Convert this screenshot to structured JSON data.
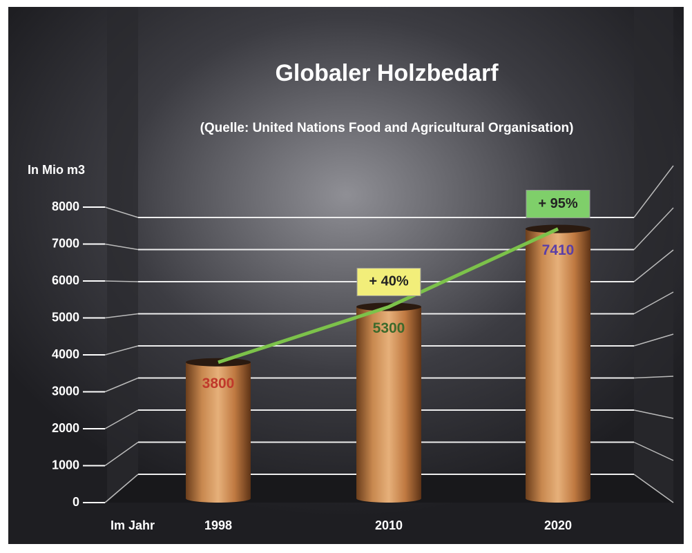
{
  "chart_data": {
    "type": "bar",
    "title": "Globaler Holzbedarf",
    "subtitle": "(Quelle: United Nations Food and Agricultural Organisation)",
    "y_label": "In Mio m3",
    "x_label": "Im Jahr",
    "categories": [
      "1998",
      "2010",
      "2020"
    ],
    "values": [
      3800,
      5300,
      7410
    ],
    "color": "#c8884f",
    "value_label_colors": [
      "#c0392b",
      "#3d6a2c",
      "#5b3fa6"
    ],
    "trend_color": "#7cc24a",
    "annotations": [
      {
        "text": "+ 40%",
        "color": "#f2ee7a"
      },
      {
        "text": "+ 95%",
        "color": "#7fcf6a"
      }
    ],
    "ylim": [
      0,
      8000
    ],
    "yticks": [
      0,
      1000,
      2000,
      3000,
      4000,
      5000,
      6000,
      7000,
      8000
    ],
    "grid": true
  }
}
